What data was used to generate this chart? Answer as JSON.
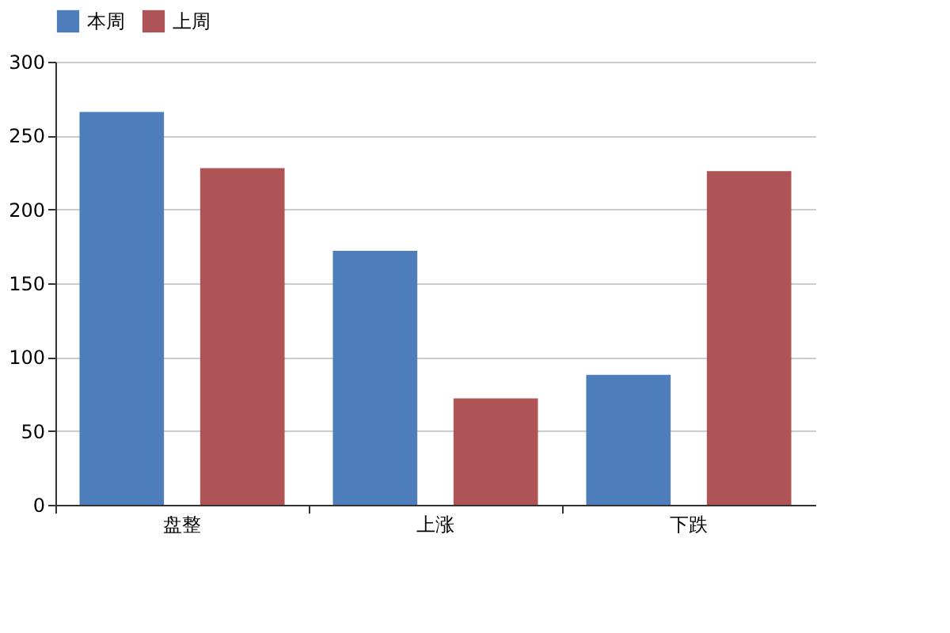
{
  "chart_data": {
    "type": "bar",
    "categories": [
      "盘整",
      "上涨",
      "下跌"
    ],
    "series": [
      {
        "name": "本周",
        "color": "#4d7ebb",
        "values": [
          266,
          172,
          88
        ]
      },
      {
        "name": "上周",
        "color": "#ae5457",
        "values": [
          228,
          72,
          226
        ]
      }
    ],
    "ylim": [
      0,
      300
    ],
    "yticks": [
      0,
      50,
      100,
      150,
      200,
      250,
      300
    ],
    "grid": "y",
    "legend": "top"
  }
}
